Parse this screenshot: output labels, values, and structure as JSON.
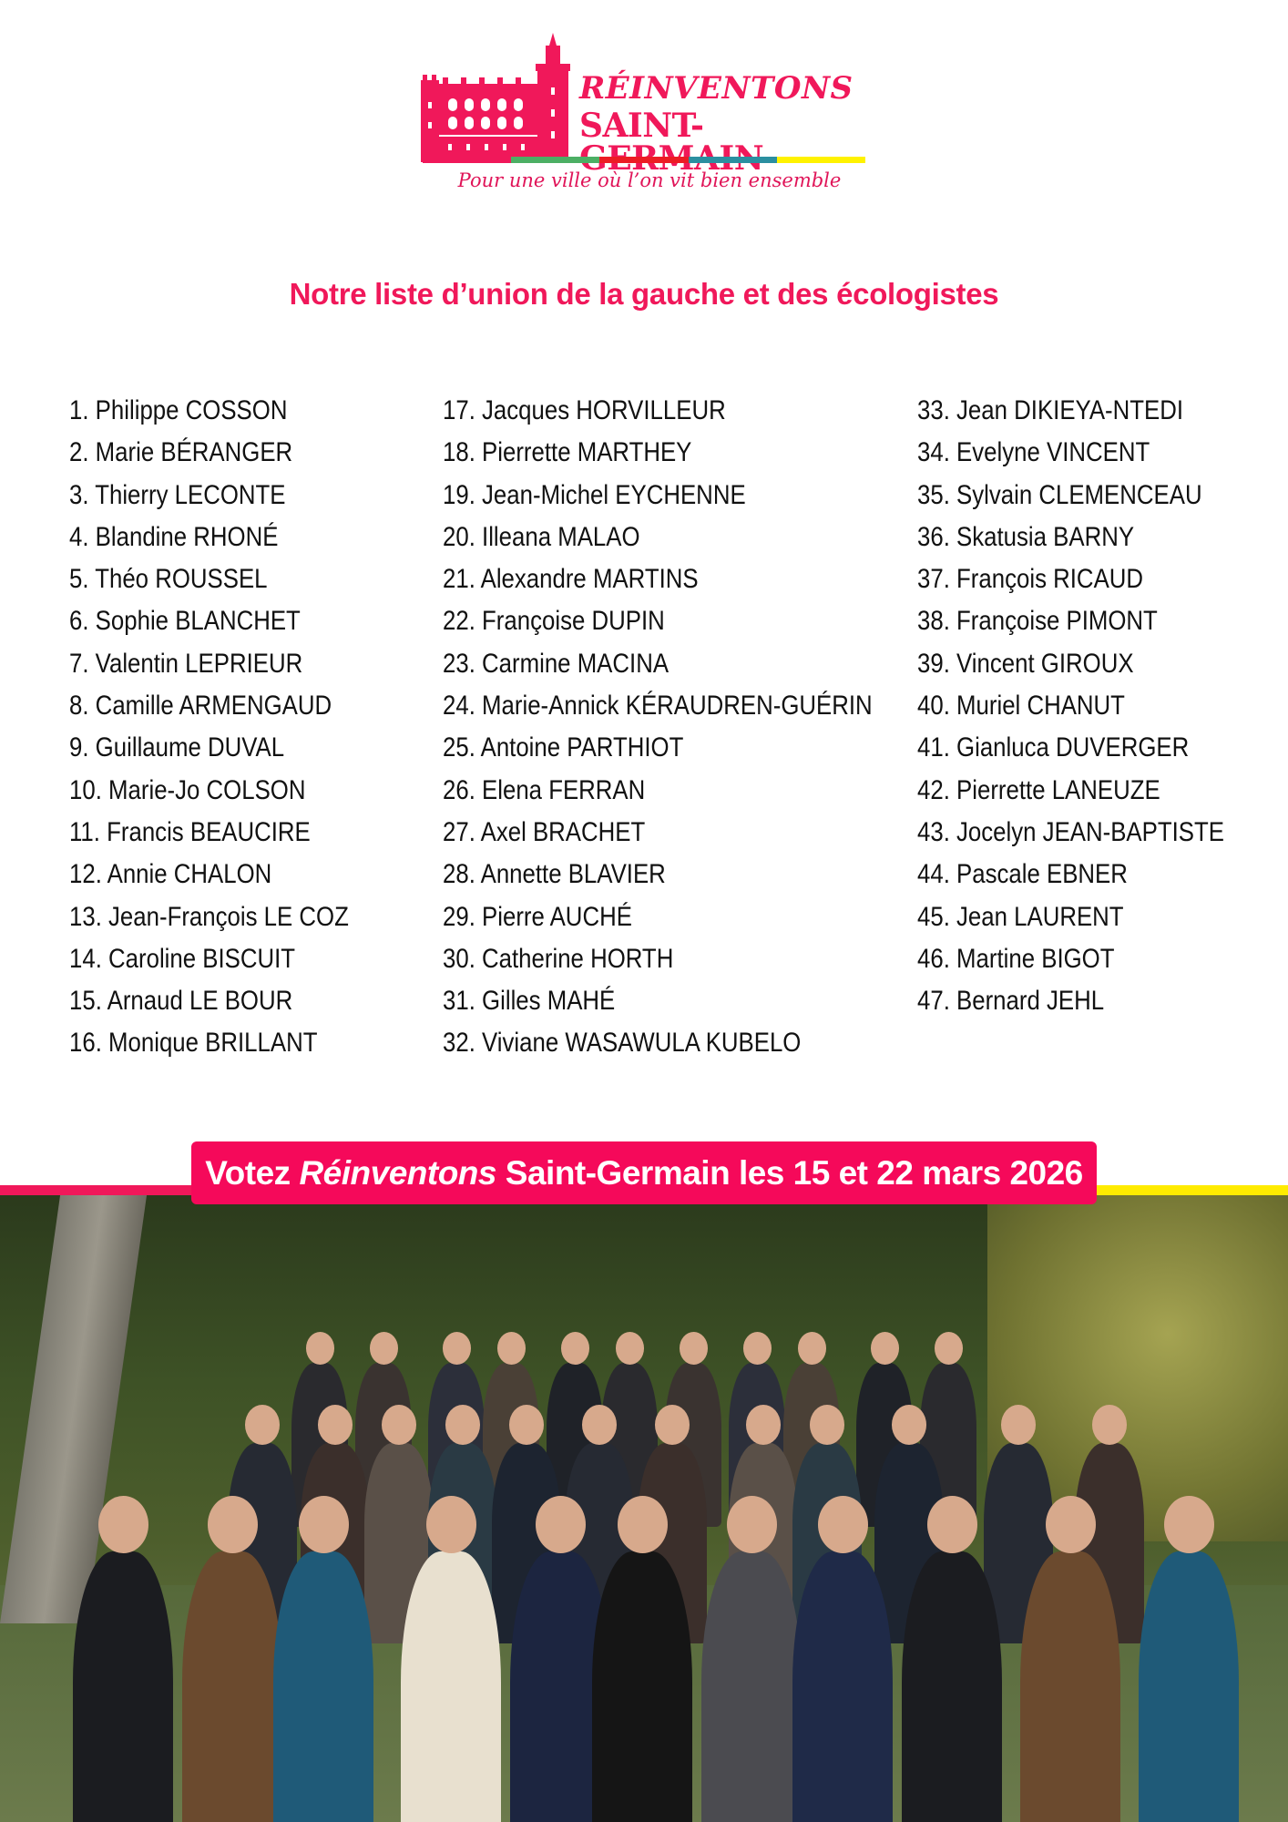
{
  "logo": {
    "line1": "RÉINVENTONS",
    "line2": "SAINT-GERMAIN",
    "tagline": "Pour une ville où l’on vit bien ensemble",
    "bar_colors": [
      "#f0185a",
      "#4caf64",
      "#ec1c24",
      "#2b8fa0",
      "#fff200"
    ],
    "brand_color": "#f0185a"
  },
  "heading": "Notre liste d’union de la gauche et des écologistes",
  "candidates": {
    "col1": [
      "1. Philippe COSSON",
      "2. Marie BÉRANGER",
      "3. Thierry LECONTE",
      "4. Blandine RHONÉ",
      "5. Théo ROUSSEL",
      "6. Sophie BLANCHET",
      "7. Valentin LEPRIEUR",
      "8. Camille ARMENGAUD",
      "9. Guillaume DUVAL",
      "10. Marie-Jo COLSON",
      "11. Francis BEAUCIRE",
      "12. Annie CHALON",
      "13. Jean-François LE COZ",
      "14. Caroline BISCUIT",
      "15. Arnaud LE BOUR",
      "16. Monique BRILLANT"
    ],
    "col2": [
      "17. Jacques HORVILLEUR",
      "18. Pierrette MARTHEY",
      "19. Jean-Michel EYCHENNE",
      "20. Illeana MALAO",
      "21. Alexandre MARTINS",
      "22. Françoise DUPIN",
      "23. Carmine MACINA",
      "24. Marie-Annick KÉRAUDREN-GUÉRIN",
      "25. Antoine PARTHIOT",
      "26. Elena FERRAN",
      "27. Axel BRACHET",
      "28. Annette BLAVIER",
      "29. Pierre AUCHÉ",
      "30. Catherine HORTH",
      "31. Gilles MAHÉ",
      "32. Viviane WASAWULA KUBELO"
    ],
    "col3": [
      "33. Jean DIKIEYA-NTEDI",
      "34. Evelyne VINCENT",
      "35. Sylvain CLEMENCEAU",
      "36. Skatusia BARNY",
      "37. François RICAUD",
      "38. Françoise PIMONT",
      "39. Vincent GIROUX",
      "40. Muriel CHANUT",
      "41. Gianluca DUVERGER",
      "42. Pierrette LANEUZE",
      "43. Jocelyn JEAN-BAPTISTE",
      "44. Pascale EBNER",
      "45. Jean LAURENT",
      "46. Martine BIGOT",
      "47. Bernard JEHL"
    ]
  },
  "banner": {
    "prefix": "Votez ",
    "italic": "Réinventons",
    "suffix": " Saint-Germain les 15 et 22 mars 2026"
  }
}
